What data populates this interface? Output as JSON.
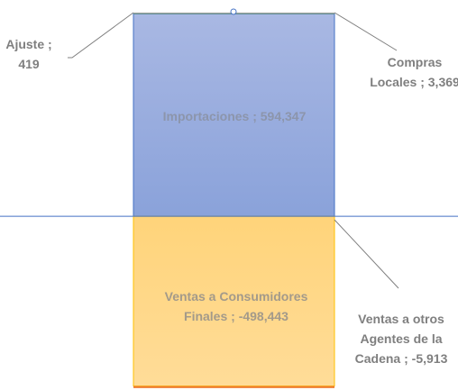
{
  "chart_data": {
    "type": "stacked-bar",
    "series": [
      {
        "color": "#8fa6dc",
        "values": [
          594347
        ],
        "value_labels": [
          "Importaciones ; 594,347"
        ]
      },
      {
        "color": "#70ad47",
        "values": [
          3369
        ],
        "value_labels": [
          "Compras Locales ; 3,369"
        ]
      },
      {
        "color": "#a5a5a5",
        "values": [
          419
        ],
        "value_labels": [
          "Ajuste ; 419"
        ]
      },
      {
        "color": "#ffd47d",
        "values": [
          -498443
        ],
        "value_labels": [
          "Ventas a Consumidores Finales ; -498,443"
        ]
      },
      {
        "color": "#ed7d31",
        "values": [
          -5913
        ],
        "value_labels": [
          "Ventas a otros Agentes de la Cadena ; -5,913"
        ]
      }
    ],
    "ylim": [
      -510000,
      635000
    ]
  }
}
